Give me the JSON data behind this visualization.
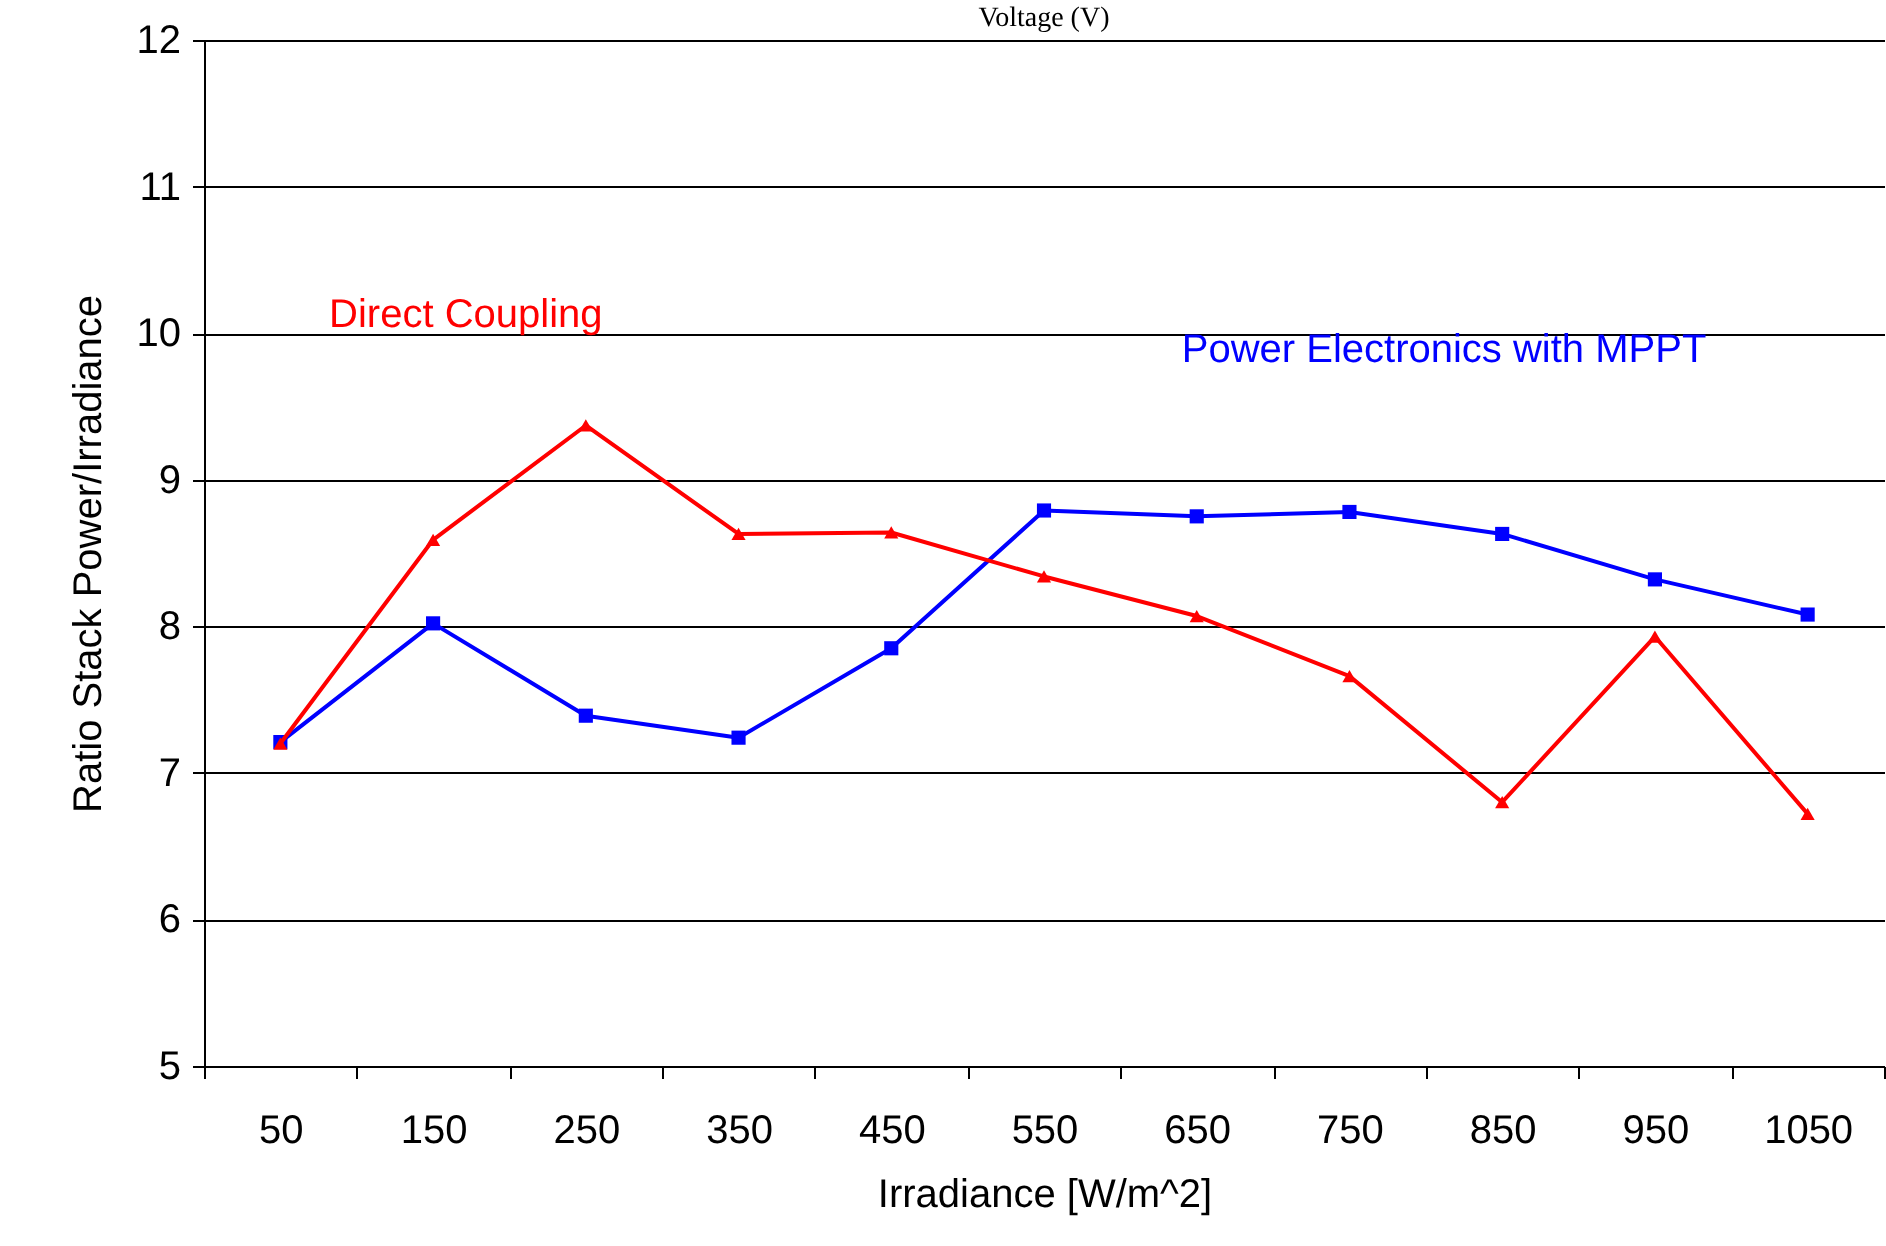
{
  "chart_data": {
    "type": "line",
    "xlabel": "Irradiance [W/m^2]",
    "ylabel": "Ratio Stack Power/Irradiance",
    "annotations": [
      "Voltage (V)"
    ],
    "categories": [
      "50",
      "150",
      "250",
      "350",
      "450",
      "550",
      "650",
      "750",
      "850",
      "950",
      "1050"
    ],
    "series": [
      {
        "name": "Direct Coupling",
        "color": "#ff0000",
        "marker": "triangle",
        "values": [
          7.2,
          8.59,
          9.37,
          8.63,
          8.64,
          8.34,
          8.07,
          7.66,
          6.8,
          7.93,
          6.72
        ]
      },
      {
        "name": "Power Electronics with MPPT",
        "color": "#0000ff",
        "marker": "square",
        "values": [
          7.21,
          8.02,
          7.39,
          7.24,
          7.85,
          8.79,
          8.75,
          8.78,
          8.63,
          8.32,
          8.08
        ]
      }
    ],
    "ylim": [
      5,
      12
    ],
    "yticks": [
      5,
      6,
      7,
      8,
      9,
      10,
      11,
      12
    ],
    "grid": "y"
  }
}
